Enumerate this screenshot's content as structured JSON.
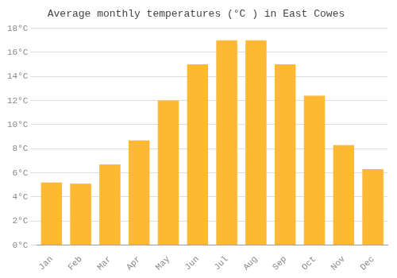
{
  "chart_data": {
    "type": "bar",
    "title": "Average monthly temperatures (°C ) in East Cowes",
    "categories": [
      "Jan",
      "Feb",
      "Mar",
      "Apr",
      "May",
      "Jun",
      "Jul",
      "Aug",
      "Sep",
      "Oct",
      "Nov",
      "Dec"
    ],
    "values": [
      5.2,
      5.1,
      6.7,
      8.7,
      12.0,
      15.0,
      17.0,
      17.0,
      15.0,
      12.4,
      8.3,
      6.3
    ],
    "color": "#FDB931",
    "ylim": [
      0,
      18
    ],
    "yticks": [
      {
        "value": 0,
        "label": "0°C"
      },
      {
        "value": 2,
        "label": "2°C"
      },
      {
        "value": 4,
        "label": "4°C"
      },
      {
        "value": 6,
        "label": "6°C"
      },
      {
        "value": 8,
        "label": "8°C"
      },
      {
        "value": 10,
        "label": "10°C"
      },
      {
        "value": 12,
        "label": "12°C"
      },
      {
        "value": 14,
        "label": "14°C"
      },
      {
        "value": 16,
        "label": "16°C"
      },
      {
        "value": 18,
        "label": "18°C"
      }
    ],
    "grid": true
  }
}
